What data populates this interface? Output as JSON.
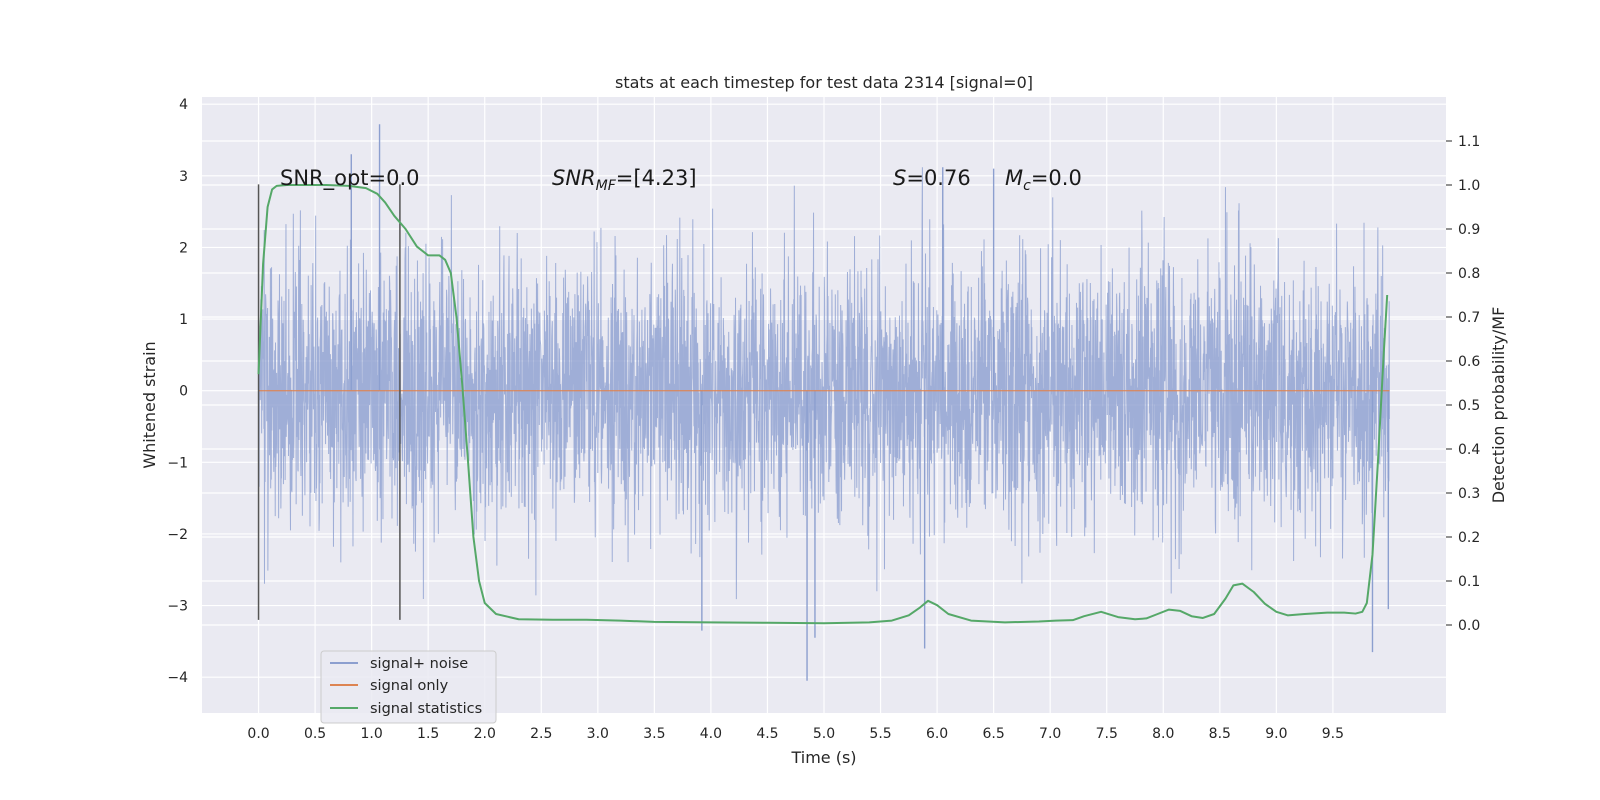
{
  "chart_data": {
    "type": "line",
    "title": "stats at each timestep for test data 2314 [signal=0]",
    "xlabel": "Time (s)",
    "ylabel": "Whitened strain",
    "y2label": "Detection probability/MF",
    "xlim": [
      -0.5,
      10.5
    ],
    "ylim": [
      -4.5,
      4.1
    ],
    "y2lim": [
      -0.2,
      1.2
    ],
    "x_ticks": [
      0.0,
      0.5,
      1.0,
      1.5,
      2.0,
      2.5,
      3.0,
      3.5,
      4.0,
      4.5,
      5.0,
      5.5,
      6.0,
      6.5,
      7.0,
      7.5,
      8.0,
      8.5,
      9.0,
      9.5
    ],
    "x_tick_labels": [
      "0.0",
      "0.5",
      "1.0",
      "1.5",
      "2.0",
      "2.5",
      "3.0",
      "3.5",
      "4.0",
      "4.5",
      "5.0",
      "5.5",
      "6.0",
      "6.5",
      "7.0",
      "7.5",
      "8.0",
      "8.5",
      "9.0",
      "9.5"
    ],
    "y_ticks": [
      -4,
      -3,
      -2,
      -1,
      0,
      1,
      2,
      3,
      4
    ],
    "y_tick_labels": [
      "−4",
      "−3",
      "−2",
      "−1",
      "0",
      "1",
      "2",
      "3",
      "4"
    ],
    "y2_ticks": [
      0.0,
      0.1,
      0.2,
      0.3,
      0.4,
      0.5,
      0.6,
      0.7,
      0.8,
      0.9,
      1.0,
      1.1
    ],
    "y2_tick_labels": [
      "0.0",
      "0.1",
      "0.2",
      "0.3",
      "0.4",
      "0.5",
      "0.6",
      "0.7",
      "0.8",
      "0.9",
      "1.0",
      "1.1"
    ],
    "grid": true,
    "legend_position": "lower-left",
    "series": [
      {
        "name": "signal+ noise",
        "axis": "left",
        "color": "#8c9fcf",
        "kind": "noise",
        "x_range": [
          0.0,
          10.0
        ],
        "envelope_typical": [
          -1.0,
          1.05
        ],
        "envelope_extreme": [
          -4.05,
          3.72
        ],
        "peaks": [
          {
            "x": 1.07,
            "y": 3.72
          },
          {
            "x": 0.82,
            "y": 3.3
          },
          {
            "x": 4.85,
            "y": -4.05
          },
          {
            "x": 9.85,
            "y": -3.65
          },
          {
            "x": 5.89,
            "y": -3.6
          },
          {
            "x": 3.92,
            "y": -3.35
          },
          {
            "x": 4.92,
            "y": -3.45
          },
          {
            "x": 6.05,
            "y": 3.12
          },
          {
            "x": 6.5,
            "y": 3.1
          },
          {
            "x": 9.99,
            "y": -3.05
          }
        ]
      },
      {
        "name": "signal only",
        "axis": "left",
        "color": "#dd8452",
        "x": [
          0.0,
          10.0
        ],
        "values": [
          0.0,
          0.0
        ]
      },
      {
        "name": "signal statistics",
        "axis": "right",
        "color": "#55a868",
        "x": [
          0.0,
          0.04,
          0.08,
          0.12,
          0.16,
          0.25,
          0.4,
          0.6,
          0.8,
          0.95,
          1.05,
          1.12,
          1.2,
          1.3,
          1.4,
          1.5,
          1.6,
          1.65,
          1.7,
          1.75,
          1.8,
          1.85,
          1.9,
          1.95,
          2.0,
          2.1,
          2.3,
          2.6,
          2.9,
          3.2,
          3.5,
          4.0,
          4.5,
          5.0,
          5.4,
          5.6,
          5.75,
          5.85,
          5.92,
          6.0,
          6.1,
          6.3,
          6.6,
          6.9,
          7.05,
          7.2,
          7.3,
          7.45,
          7.6,
          7.75,
          7.85,
          7.95,
          8.05,
          8.15,
          8.25,
          8.35,
          8.45,
          8.55,
          8.62,
          8.7,
          8.8,
          8.9,
          9.0,
          9.1,
          9.25,
          9.45,
          9.6,
          9.7,
          9.76,
          9.8,
          9.85,
          9.9,
          9.95,
          9.98
        ],
        "values": [
          0.57,
          0.82,
          0.95,
          0.99,
          0.998,
          1.0,
          1.0,
          1.0,
          0.998,
          0.993,
          0.98,
          0.96,
          0.93,
          0.9,
          0.86,
          0.84,
          0.84,
          0.83,
          0.8,
          0.7,
          0.55,
          0.38,
          0.2,
          0.1,
          0.05,
          0.025,
          0.013,
          0.012,
          0.012,
          0.01,
          0.007,
          0.006,
          0.005,
          0.004,
          0.006,
          0.01,
          0.022,
          0.04,
          0.055,
          0.045,
          0.025,
          0.01,
          0.006,
          0.008,
          0.01,
          0.011,
          0.02,
          0.03,
          0.018,
          0.013,
          0.015,
          0.025,
          0.035,
          0.032,
          0.02,
          0.016,
          0.025,
          0.06,
          0.09,
          0.094,
          0.075,
          0.048,
          0.03,
          0.022,
          0.025,
          0.028,
          0.028,
          0.026,
          0.03,
          0.05,
          0.16,
          0.38,
          0.62,
          0.75
        ]
      }
    ],
    "vertical_markers": [
      {
        "x": 0.0,
        "y_range": [
          -3.2,
          2.88
        ],
        "color": "#555555"
      },
      {
        "x": 1.25,
        "y_range": [
          -3.2,
          2.88
        ],
        "color": "#555555"
      }
    ],
    "annotations": [
      {
        "id": "snr-opt",
        "text": "SNR_opt=0.0",
        "x": 0.2,
        "y": 2.85
      },
      {
        "id": "snr-mf",
        "text": "SNR_MF=[4.23]",
        "x": 2.6,
        "y": 2.85
      },
      {
        "id": "s-stat",
        "text": "S=0.76",
        "x": 5.6,
        "y": 2.85
      },
      {
        "id": "mc",
        "text": "M_c=0.0",
        "x": 6.6,
        "y": 2.85
      }
    ],
    "annotation_parts": {
      "snr_mf_italic": "SNR",
      "snr_mf_sub": "MF",
      "snr_mf_rest": "=[4.23]",
      "s_italic": "S",
      "s_rest": "=0.76",
      "mc_italic": "M",
      "mc_sub": "c",
      "mc_rest": "=0.0"
    },
    "legend": [
      {
        "label": "signal+ noise",
        "color": "#8c9fcf"
      },
      {
        "label": "signal only",
        "color": "#dd8452"
      },
      {
        "label": "signal statistics",
        "color": "#55a868"
      }
    ]
  }
}
